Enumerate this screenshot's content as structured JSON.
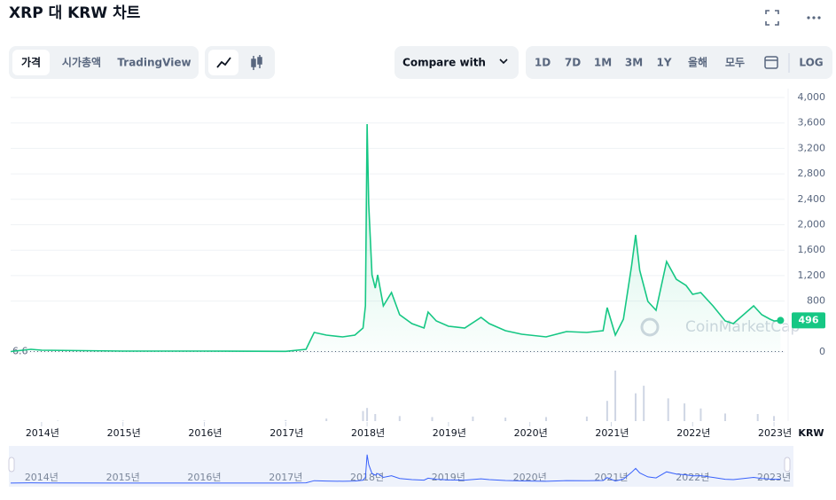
{
  "ui": {
    "title": "XRP 대 KRW 차트",
    "tabs": [
      "가격",
      "시가총액",
      "TradingView"
    ],
    "compare": "Compare with",
    "ranges": [
      "1D",
      "7D",
      "1M",
      "3M",
      "1Y",
      "올해",
      "모두"
    ],
    "log": "LOG",
    "currency": "KRW",
    "watermark": "CoinMarketCap"
  },
  "chart_data": {
    "type": "area",
    "color": "#16c784",
    "x": [
      2013.62,
      2013.87,
      2014.0,
      2015.0,
      2016.0,
      2017.0,
      2017.25,
      2017.35,
      2017.5,
      2017.7,
      2017.85,
      2017.95,
      2017.98,
      2018.0,
      2018.02,
      2018.06,
      2018.1,
      2018.13,
      2018.2,
      2018.3,
      2018.4,
      2018.55,
      2018.7,
      2018.75,
      2018.85,
      2019.0,
      2019.2,
      2019.4,
      2019.5,
      2019.7,
      2019.9,
      2020.2,
      2020.45,
      2020.7,
      2020.9,
      2020.95,
      2021.05,
      2021.15,
      2021.25,
      2021.3,
      2021.35,
      2021.45,
      2021.55,
      2021.68,
      2021.8,
      2021.92,
      2022.0,
      2022.1,
      2022.25,
      2022.4,
      2022.5,
      2022.75,
      2022.85,
      2022.95,
      2023.0,
      2023.08
    ],
    "values": [
      6.6,
      42,
      28,
      14,
      14,
      10,
      42,
      307,
      265,
      237,
      265,
      376,
      725,
      3582,
      2327,
      1213,
      1003,
      1213,
      725,
      934,
      585,
      446,
      376,
      627,
      488,
      404,
      376,
      544,
      446,
      334,
      279,
      237,
      321,
      307,
      334,
      697,
      265,
      516,
      1352,
      1840,
      1282,
      794,
      655,
      1422,
      1143,
      1045,
      906,
      934,
      725,
      488,
      446,
      725,
      585,
      516,
      488,
      496
    ],
    "reference_value": 6.6,
    "reference_label": "6.6",
    "xlim": [
      2013.62,
      2023.13
    ],
    "xticks": [
      {
        "value": 2014,
        "label": "2014년"
      },
      {
        "value": 2015,
        "label": "2015년"
      },
      {
        "value": 2016,
        "label": "2016년"
      },
      {
        "value": 2017,
        "label": "2017년"
      },
      {
        "value": 2018,
        "label": "2018년"
      },
      {
        "value": 2019,
        "label": "2019년"
      },
      {
        "value": 2020,
        "label": "2020년"
      },
      {
        "value": 2021,
        "label": "2021년"
      },
      {
        "value": 2022,
        "label": "2022년"
      },
      {
        "value": 2023,
        "label": "2023년"
      }
    ],
    "ylim": [
      0,
      4000
    ],
    "yticks": [
      0,
      800,
      {
        "value": 1200,
        "label": "1,200"
      },
      {
        "value": 1600,
        "label": "1,600"
      },
      {
        "value": 2000,
        "label": "2,000"
      },
      {
        "value": 2400,
        "label": "2,400"
      },
      {
        "value": 2800,
        "label": "2,800"
      },
      {
        "value": 3200,
        "label": "3,200"
      },
      {
        "value": 3600,
        "label": "3,600"
      },
      {
        "value": 4000,
        "label": "4,000"
      }
    ],
    "grid": true,
    "volume": {
      "x": [
        2014.2,
        2015.0,
        2016.0,
        2017.0,
        2017.5,
        2017.95,
        2018.0,
        2018.1,
        2018.4,
        2018.8,
        2019.3,
        2019.7,
        2020.2,
        2020.7,
        2020.95,
        2021.05,
        2021.3,
        2021.4,
        2021.7,
        2021.9,
        2022.1,
        2022.4,
        2022.8,
        2023.0
      ],
      "values": [
        1,
        1,
        1,
        2,
        5,
        20,
        26,
        14,
        10,
        8,
        9,
        7,
        8,
        9,
        40,
        100,
        55,
        70,
        45,
        35,
        25,
        15,
        14,
        10
      ]
    }
  }
}
